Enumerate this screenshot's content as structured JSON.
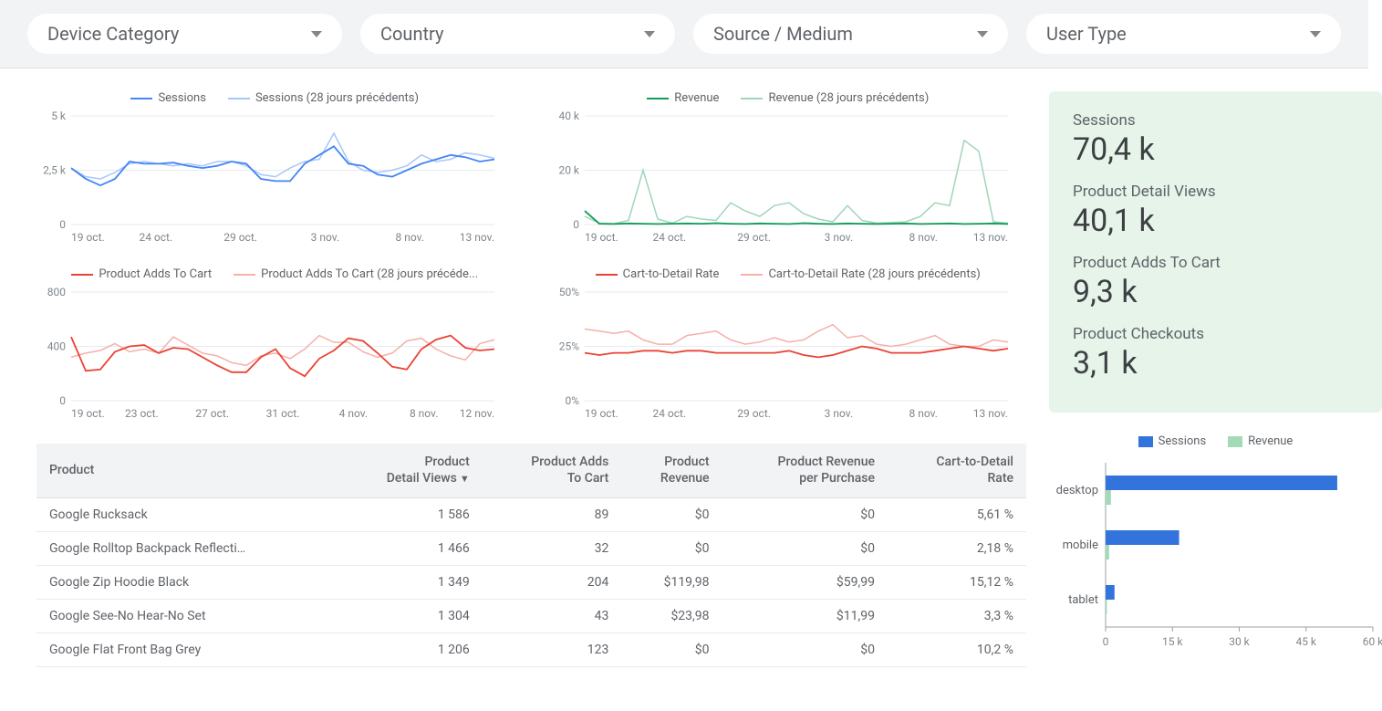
{
  "filters": [
    {
      "label": "Device Category"
    },
    {
      "label": "Country"
    },
    {
      "label": "Source / Medium"
    },
    {
      "label": "User Type"
    }
  ],
  "colors": {
    "axis": "#9aa0a6",
    "grid": "#e8eaed",
    "tick_font": "#80868b",
    "blue": "#4285f4",
    "blue_light": "#a8c7fa",
    "green": "#0f9d58",
    "green_light": "#a1d6b8",
    "red": "#ea4335",
    "red_light": "#f5b0a9",
    "scorecard_bg": "#e6f4ea",
    "bar_blue": "#3374dc",
    "bar_green": "#a4dab7",
    "table_header_bg": "#f1f3f4"
  },
  "chart_sessions": {
    "legend": [
      "Sessions",
      "Sessions (28 jours précédents)"
    ],
    "color_primary": "#4285f4",
    "color_secondary": "#a8c7fa",
    "y_ticks": [
      "0",
      "2,5 k",
      "5 k"
    ],
    "y_max": 5000,
    "x_ticks": [
      "19 oct.",
      "24 oct.",
      "29 oct.",
      "3 nov.",
      "8 nov.",
      "13 nov."
    ],
    "primary": [
      2600,
      2100,
      1800,
      2100,
      2900,
      2800,
      2800,
      2850,
      2700,
      2600,
      2700,
      2900,
      2800,
      2100,
      2000,
      2000,
      2800,
      3200,
      3600,
      2800,
      2700,
      2300,
      2200,
      2500,
      2800,
      3000,
      3200,
      3100,
      2900,
      3000
    ],
    "secondary": [
      2600,
      2200,
      2100,
      2400,
      2800,
      2900,
      2800,
      2700,
      2800,
      2700,
      2900,
      2900,
      2700,
      2300,
      2200,
      2600,
      2900,
      3000,
      4200,
      2900,
      2500,
      2400,
      2500,
      2700,
      3200,
      2900,
      3000,
      3300,
      3200,
      3050
    ]
  },
  "chart_revenue": {
    "legend": [
      "Revenue",
      "Revenue (28 jours précédents)"
    ],
    "color_primary": "#0f9d58",
    "color_secondary": "#a1d6b8",
    "y_ticks": [
      "0",
      "20 k",
      "40 k"
    ],
    "y_max": 40000,
    "x_ticks": [
      "19 oct.",
      "24 oct.",
      "29 oct.",
      "3 nov.",
      "8 nov.",
      "13 nov."
    ],
    "primary": [
      5000,
      300,
      200,
      400,
      300,
      200,
      300,
      400,
      300,
      500,
      300,
      200,
      400,
      300,
      200,
      500,
      300,
      200,
      400,
      300,
      200,
      300,
      400,
      200,
      300,
      400,
      200,
      300,
      400,
      200
    ],
    "secondary": [
      3000,
      500,
      300,
      1500,
      20000,
      2000,
      500,
      3000,
      2000,
      1500,
      8000,
      5000,
      3000,
      7000,
      8000,
      4000,
      2000,
      1000,
      7000,
      1500,
      500,
      700,
      1000,
      3000,
      8000,
      7000,
      31000,
      27000,
      1000,
      500
    ]
  },
  "chart_adds": {
    "legend": [
      "Product Adds To Cart",
      "Product Adds To Cart (28 jours précéde..."
    ],
    "color_primary": "#ea4335",
    "color_secondary": "#f5b0a9",
    "y_ticks": [
      "0",
      "400",
      "800"
    ],
    "y_max": 800,
    "x_ticks": [
      "19 oct.",
      "23 oct.",
      "27 oct.",
      "31 oct.",
      "4 nov.",
      "8 nov.",
      "12 nov."
    ],
    "primary": [
      470,
      220,
      230,
      360,
      400,
      410,
      350,
      390,
      380,
      320,
      260,
      210,
      210,
      320,
      380,
      240,
      180,
      310,
      370,
      460,
      440,
      350,
      250,
      230,
      380,
      450,
      480,
      390,
      370,
      380
    ],
    "secondary": [
      320,
      350,
      370,
      420,
      360,
      380,
      350,
      470,
      410,
      350,
      330,
      280,
      260,
      330,
      350,
      310,
      380,
      480,
      430,
      430,
      360,
      320,
      350,
      440,
      460,
      380,
      330,
      300,
      420,
      450
    ]
  },
  "chart_rate": {
    "legend": [
      "Cart-to-Detail Rate",
      "Cart-to-Detail Rate (28 jours précédents)"
    ],
    "color_primary": "#ea4335",
    "color_secondary": "#f5b0a9",
    "y_ticks": [
      "0%",
      "25%",
      "50%"
    ],
    "y_max": 50,
    "x_ticks": [
      "19 oct.",
      "24 oct.",
      "29 oct.",
      "3 nov.",
      "8 nov.",
      "13 nov."
    ],
    "primary": [
      22,
      21,
      22,
      22,
      23,
      23,
      22,
      23,
      23,
      22,
      22,
      22,
      22,
      22,
      23,
      21,
      20,
      21,
      23,
      25,
      24,
      22,
      22,
      22,
      23,
      24,
      25,
      24,
      23,
      24
    ],
    "secondary": [
      33,
      32,
      31,
      32,
      28,
      26,
      26,
      30,
      31,
      32,
      28,
      26,
      27,
      29,
      27,
      28,
      32,
      35,
      29,
      30,
      26,
      25,
      26,
      28,
      30,
      26,
      25,
      25,
      28,
      27
    ]
  },
  "table": {
    "columns": [
      "Product",
      "Product Detail Views",
      "Product Adds To Cart",
      "Product Revenue",
      "Product Revenue per Purchase",
      "Cart-to-Detail Rate"
    ],
    "sort_col_index": 1,
    "rows": [
      [
        "Google Rucksack",
        "1 586",
        "89",
        "$0",
        "$0",
        "5,61 %"
      ],
      [
        "Google Rolltop Backpack Reflecti…",
        "1 466",
        "32",
        "$0",
        "$0",
        "2,18 %"
      ],
      [
        "Google Zip Hoodie Black",
        "1 349",
        "204",
        "$119,98",
        "$59,99",
        "15,12 %"
      ],
      [
        "Google See-No Hear-No Set",
        "1 304",
        "43",
        "$23,98",
        "$11,99",
        "3,3 %"
      ],
      [
        "Google Flat Front Bag Grey",
        "1 206",
        "123",
        "$0",
        "$0",
        "10,2 %"
      ]
    ]
  },
  "scorecards": [
    {
      "label": "Sessions",
      "value": "70,4 k"
    },
    {
      "label": "Product Detail Views",
      "value": "40,1 k"
    },
    {
      "label": "Product Adds To Cart",
      "value": "9,3 k"
    },
    {
      "label": "Product Checkouts",
      "value": "3,1 k"
    }
  ],
  "bar_chart": {
    "legend": [
      "Sessions",
      "Revenue"
    ],
    "color_a": "#3374dc",
    "color_b": "#a4dab7",
    "x_max": 60000,
    "x_ticks": [
      "0",
      "15 k",
      "30 k",
      "45 k",
      "60 k"
    ],
    "categories": [
      "desktop",
      "mobile",
      "tablet"
    ],
    "series_a": [
      52000,
      16500,
      2000
    ],
    "series_b": [
      1200,
      800,
      300
    ]
  }
}
